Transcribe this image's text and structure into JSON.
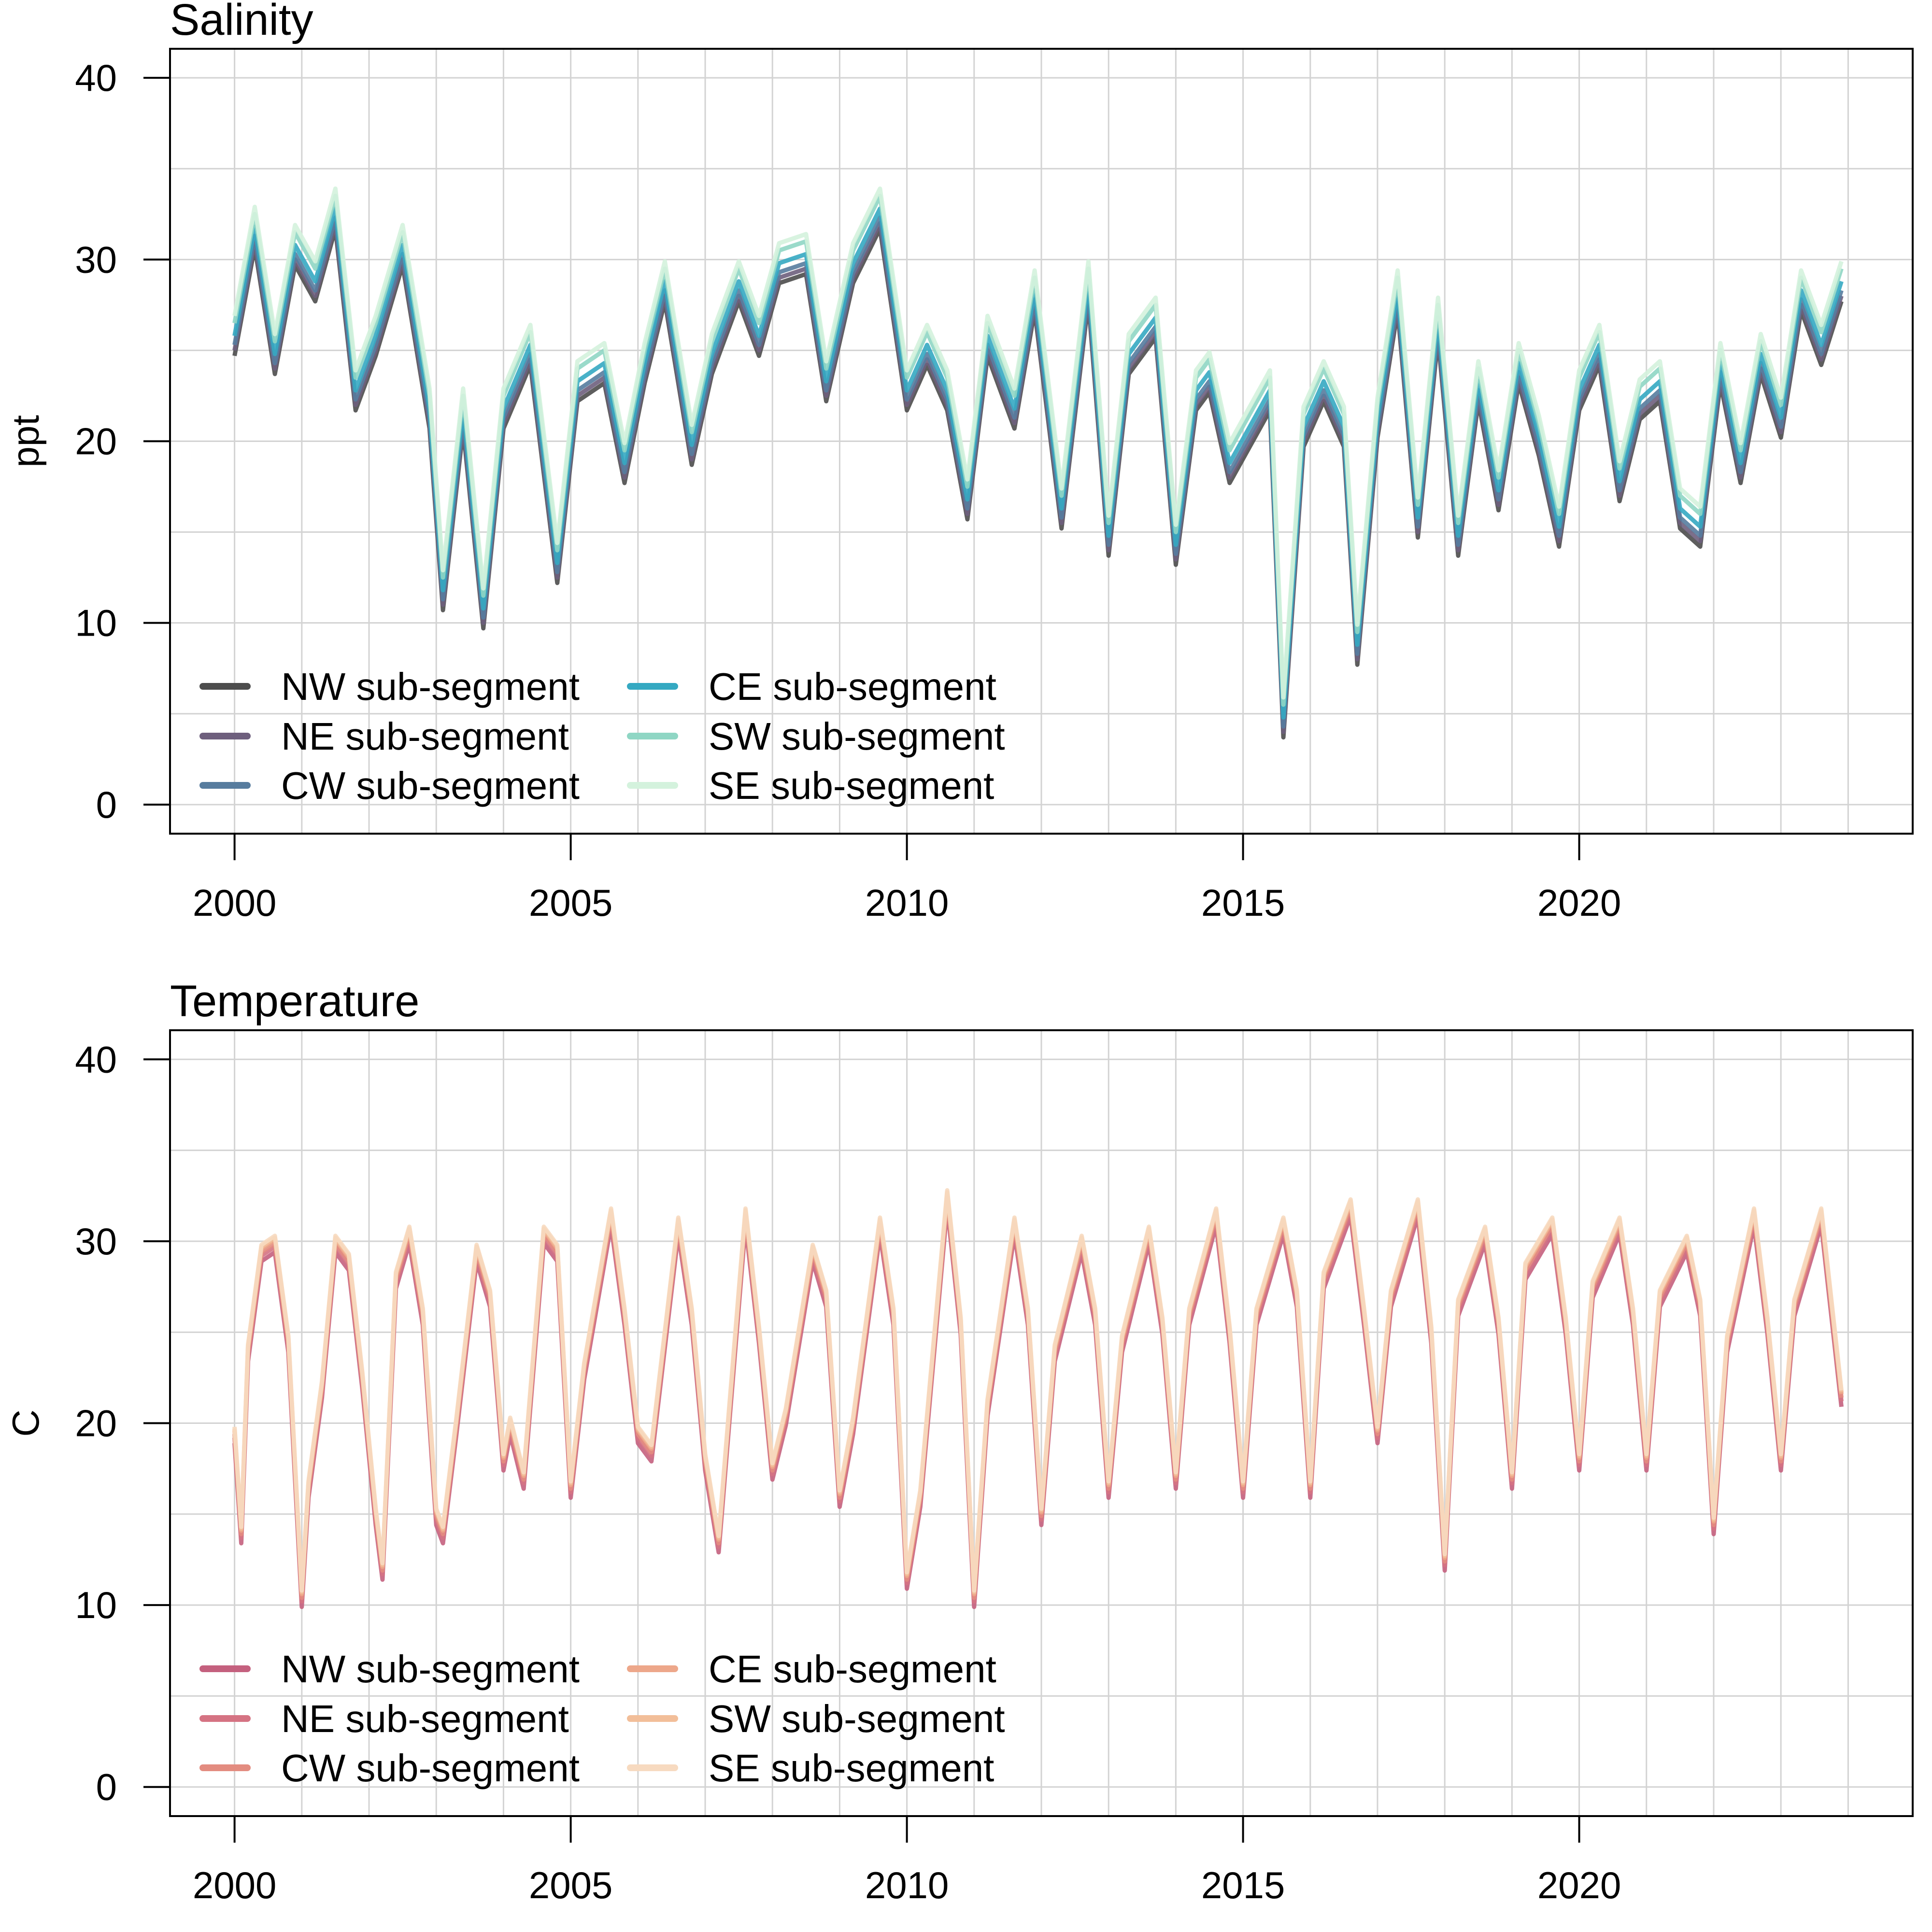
{
  "chart_data": [
    {
      "type": "line",
      "title": "Salinity",
      "ylabel": "ppt",
      "xlabel": "",
      "xlim": [
        2000,
        2024
      ],
      "ylim": [
        0,
        40
      ],
      "x_ticks": [
        "2000",
        "2005",
        "2010",
        "2015",
        "2020"
      ],
      "y_ticks": [
        "0",
        "10",
        "20",
        "30",
        "40"
      ],
      "grid": true,
      "legend_position": "bottom-left",
      "legend_columns": 2,
      "series": [
        {
          "name": "NW sub-segment",
          "color": "#4d4d4d",
          "offset": -0.8
        },
        {
          "name": "NE sub-segment",
          "color": "#6e5f7d",
          "offset": -0.5
        },
        {
          "name": "CW sub-segment",
          "color": "#577c9e",
          "offset": -0.2
        },
        {
          "name": "CE sub-segment",
          "color": "#35a9c2",
          "offset": 0.3
        },
        {
          "name": "SW sub-segment",
          "color": "#8fd6c4",
          "offset": 1.0
        },
        {
          "name": "SE sub-segment",
          "color": "#d4f2dd",
          "offset": 1.4
        }
      ],
      "x": [
        2000.0,
        2000.3,
        2000.6,
        2000.9,
        2001.2,
        2001.5,
        2001.8,
        2002.1,
        2002.5,
        2002.9,
        2003.1,
        2003.4,
        2003.7,
        2004.0,
        2004.4,
        2004.8,
        2005.1,
        2005.5,
        2005.8,
        2006.1,
        2006.4,
        2006.8,
        2007.1,
        2007.5,
        2007.8,
        2008.1,
        2008.5,
        2008.8,
        2009.2,
        2009.6,
        2010.0,
        2010.3,
        2010.6,
        2010.9,
        2011.2,
        2011.6,
        2011.9,
        2012.3,
        2012.7,
        2013.0,
        2013.3,
        2013.7,
        2014.0,
        2014.3,
        2014.5,
        2014.8,
        2015.1,
        2015.4,
        2015.6,
        2015.9,
        2016.2,
        2016.5,
        2016.7,
        2017.0,
        2017.3,
        2017.6,
        2017.9,
        2018.2,
        2018.5,
        2018.8,
        2019.1,
        2019.4,
        2019.7,
        2020.0,
        2020.3,
        2020.6,
        2020.9,
        2021.2,
        2021.5,
        2021.8,
        2022.1,
        2022.4,
        2022.7,
        2023.0,
        2023.3,
        2023.6,
        2023.9
      ],
      "values": [
        25.5,
        31.5,
        24.5,
        30.5,
        28.5,
        32.5,
        22.5,
        25.5,
        30.5,
        21.5,
        11.5,
        21.5,
        10.5,
        21.5,
        25.0,
        13.0,
        23.0,
        24.0,
        18.5,
        24.0,
        28.5,
        19.5,
        24.5,
        28.5,
        25.5,
        29.5,
        30.0,
        23.0,
        29.5,
        32.5,
        22.5,
        25.0,
        22.5,
        16.5,
        25.5,
        21.5,
        28.0,
        16.0,
        28.5,
        14.5,
        24.5,
        26.5,
        14.0,
        22.5,
        23.5,
        18.5,
        20.5,
        22.5,
        4.5,
        20.5,
        23.0,
        20.5,
        8.5,
        21.0,
        28.0,
        15.5,
        26.5,
        14.5,
        23.0,
        17.0,
        24.0,
        20.0,
        15.0,
        22.5,
        25.0,
        17.5,
        22.0,
        23.0,
        16.0,
        15.0,
        24.0,
        18.5,
        24.5,
        21.0,
        28.0,
        25.0,
        28.5
      ]
    },
    {
      "type": "line",
      "title": "Temperature",
      "ylabel": "C",
      "xlabel": "",
      "xlim": [
        2000,
        2024
      ],
      "ylim": [
        0,
        40
      ],
      "x_ticks": [
        "2000",
        "2005",
        "2010",
        "2015",
        "2020"
      ],
      "y_ticks": [
        "0",
        "10",
        "20",
        "30",
        "40"
      ],
      "grid": true,
      "legend_position": "bottom-left",
      "legend_columns": 2,
      "series": [
        {
          "name": "NW sub-segment",
          "color": "#c4607e",
          "offset": -0.6
        },
        {
          "name": "NE sub-segment",
          "color": "#d57383",
          "offset": -0.3
        },
        {
          "name": "CW sub-segment",
          "color": "#e38c80",
          "offset": -0.1
        },
        {
          "name": "CE sub-segment",
          "color": "#eda78a",
          "offset": 0.1
        },
        {
          "name": "SW sub-segment",
          "color": "#f2be99",
          "offset": 0.2
        },
        {
          "name": "SE sub-segment",
          "color": "#f7dac0",
          "offset": 0.3
        }
      ],
      "x": [
        2000.0,
        2000.1,
        2000.2,
        2000.4,
        2000.6,
        2000.8,
        2001.0,
        2001.1,
        2001.3,
        2001.5,
        2001.7,
        2001.9,
        2002.1,
        2002.2,
        2002.4,
        2002.6,
        2002.8,
        2003.0,
        2003.1,
        2003.3,
        2003.6,
        2003.8,
        2004.0,
        2004.1,
        2004.3,
        2004.6,
        2004.8,
        2005.0,
        2005.2,
        2005.6,
        2005.8,
        2006.0,
        2006.2,
        2006.6,
        2006.8,
        2007.0,
        2007.2,
        2007.6,
        2007.8,
        2008.0,
        2008.2,
        2008.6,
        2008.8,
        2009.0,
        2009.2,
        2009.6,
        2009.8,
        2010.0,
        2010.2,
        2010.6,
        2010.8,
        2011.0,
        2011.2,
        2011.6,
        2011.8,
        2012.0,
        2012.2,
        2012.6,
        2012.8,
        2013.0,
        2013.2,
        2013.6,
        2013.8,
        2014.0,
        2014.2,
        2014.6,
        2014.8,
        2015.0,
        2015.2,
        2015.6,
        2015.8,
        2016.0,
        2016.2,
        2016.6,
        2016.8,
        2017.0,
        2017.2,
        2017.6,
        2017.8,
        2018.0,
        2018.2,
        2018.6,
        2018.8,
        2019.0,
        2019.2,
        2019.6,
        2019.8,
        2020.0,
        2020.2,
        2020.6,
        2020.8,
        2021.0,
        2021.2,
        2021.6,
        2021.8,
        2022.0,
        2022.2,
        2022.6,
        2022.8,
        2023.0,
        2023.2,
        2023.6,
        2023.9
      ],
      "values": [
        19.5,
        14.0,
        24.0,
        29.5,
        30.0,
        24.5,
        10.5,
        16.5,
        22.0,
        30.0,
        29.0,
        22.5,
        15.0,
        12.0,
        28.0,
        30.5,
        26.0,
        15.0,
        14.0,
        20.0,
        29.5,
        27.0,
        18.0,
        20.0,
        17.0,
        30.5,
        29.5,
        16.5,
        23.0,
        31.5,
        26.0,
        19.5,
        18.5,
        31.0,
        26.0,
        18.0,
        13.5,
        31.5,
        25.0,
        17.5,
        20.5,
        29.5,
        27.0,
        16.0,
        20.0,
        31.0,
        26.0,
        11.5,
        16.0,
        32.5,
        25.5,
        10.5,
        21.0,
        31.0,
        26.0,
        15.0,
        24.0,
        30.0,
        26.0,
        16.5,
        24.5,
        30.5,
        25.5,
        17.0,
        26.0,
        31.5,
        25.0,
        16.5,
        26.0,
        31.0,
        27.0,
        16.5,
        28.0,
        32.0,
        26.0,
        19.5,
        27.0,
        32.0,
        25.0,
        12.5,
        26.5,
        30.5,
        25.5,
        17.0,
        28.5,
        31.0,
        25.5,
        18.0,
        27.5,
        31.0,
        26.0,
        18.0,
        27.0,
        30.0,
        26.5,
        14.5,
        24.5,
        31.5,
        25.5,
        18.0,
        26.5,
        31.5,
        21.5
      ]
    }
  ]
}
